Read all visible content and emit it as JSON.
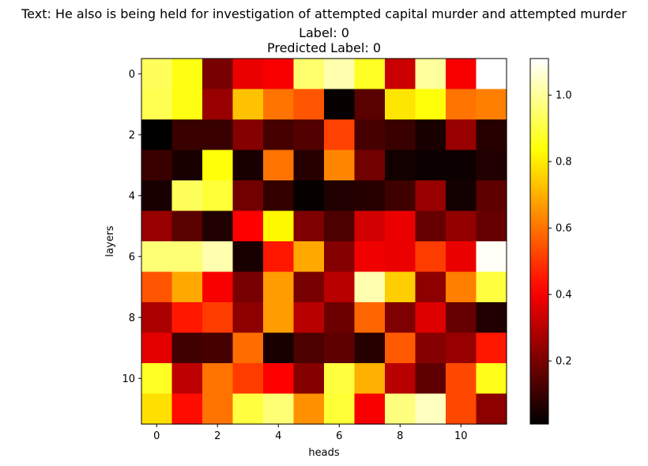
{
  "chart_data": {
    "type": "heatmap",
    "title_lines": [
      "Text: He also is being held for investigation of attempted capital murder and attempted murder",
      "Label: 0",
      "Predicted Label: 0"
    ],
    "xlabel": "heads",
    "ylabel": "layers",
    "x_ticks": [
      0,
      2,
      4,
      6,
      8,
      10
    ],
    "y_ticks": [
      0,
      2,
      4,
      6,
      8,
      10
    ],
    "colormap": "hot",
    "value_range": [
      0.01,
      1.11
    ],
    "colorbar_ticks": [
      0.2,
      0.4,
      0.6,
      0.8,
      1.0
    ],
    "colorbar_tick_labels": [
      "0.2",
      "0.4",
      "0.6",
      "0.8",
      "1.0"
    ],
    "values": [
      [
        0.93,
        0.85,
        0.2,
        0.38,
        0.4,
        0.95,
        1.02,
        0.87,
        0.33,
        1.0,
        0.4,
        1.11
      ],
      [
        0.92,
        0.85,
        0.25,
        0.73,
        0.6,
        0.55,
        0.02,
        0.15,
        0.79,
        0.84,
        0.6,
        0.62
      ],
      [
        0.01,
        0.1,
        0.1,
        0.22,
        0.12,
        0.14,
        0.52,
        0.12,
        0.1,
        0.05,
        0.25,
        0.07
      ],
      [
        0.1,
        0.05,
        0.84,
        0.05,
        0.6,
        0.07,
        0.63,
        0.19,
        0.04,
        0.03,
        0.03,
        0.06
      ],
      [
        0.05,
        0.93,
        0.89,
        0.19,
        0.09,
        0.02,
        0.06,
        0.07,
        0.11,
        0.25,
        0.04,
        0.16
      ],
      [
        0.25,
        0.15,
        0.06,
        0.41,
        0.82,
        0.21,
        0.13,
        0.34,
        0.38,
        0.17,
        0.24,
        0.17
      ],
      [
        0.96,
        0.96,
        1.02,
        0.05,
        0.45,
        0.69,
        0.22,
        0.39,
        0.38,
        0.51,
        0.38,
        1.1
      ],
      [
        0.55,
        0.69,
        0.4,
        0.2,
        0.67,
        0.2,
        0.3,
        1.02,
        0.75,
        0.23,
        0.62,
        0.9
      ],
      [
        0.28,
        0.45,
        0.51,
        0.23,
        0.67,
        0.3,
        0.18,
        0.58,
        0.21,
        0.36,
        0.17,
        0.06
      ],
      [
        0.37,
        0.11,
        0.12,
        0.59,
        0.05,
        0.13,
        0.16,
        0.07,
        0.56,
        0.22,
        0.25,
        0.45
      ],
      [
        0.87,
        0.31,
        0.6,
        0.51,
        0.41,
        0.22,
        0.9,
        0.7,
        0.3,
        0.16,
        0.53,
        0.86
      ],
      [
        0.78,
        0.43,
        0.6,
        0.9,
        0.96,
        0.65,
        0.89,
        0.4,
        0.97,
        1.04,
        0.53,
        0.23
      ]
    ]
  }
}
